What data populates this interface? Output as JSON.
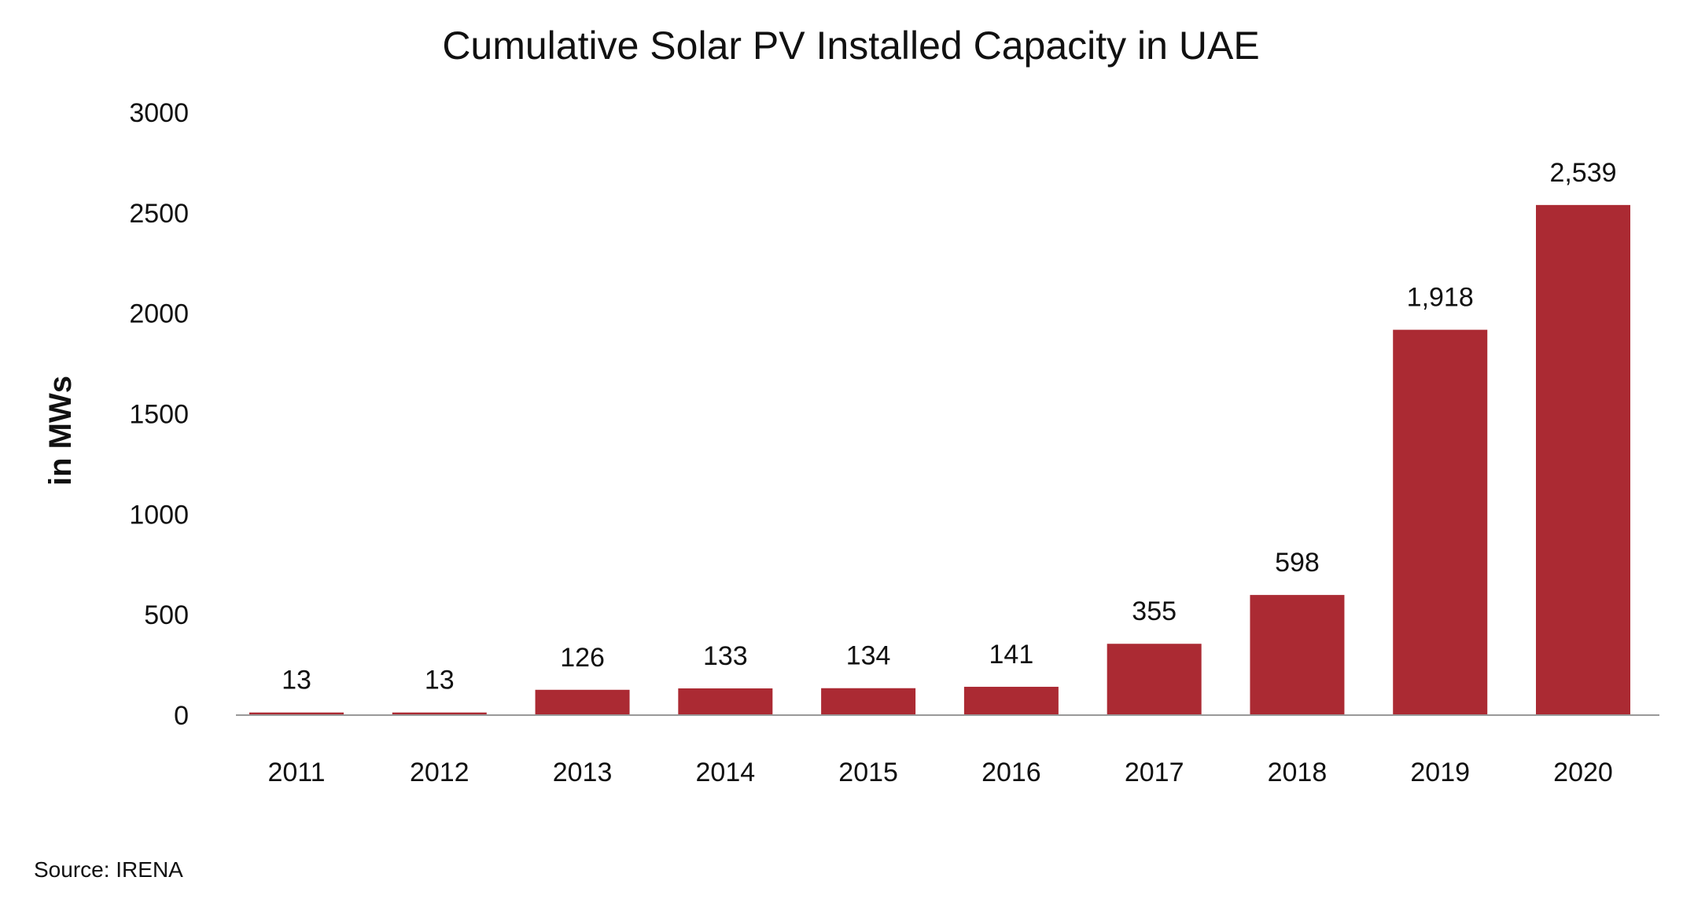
{
  "chart_data": {
    "type": "bar",
    "title": "Cumulative Solar PV Installed Capacity in UAE",
    "xlabel": "",
    "ylabel": "in MWs",
    "categories": [
      "2011",
      "2012",
      "2013",
      "2014",
      "2015",
      "2016",
      "2017",
      "2018",
      "2019",
      "2020"
    ],
    "values": [
      13,
      13,
      126,
      133,
      134,
      141,
      355,
      598,
      1918,
      2539
    ],
    "value_labels": [
      "13",
      "13",
      "126",
      "133",
      "134",
      "141",
      "355",
      "598",
      "1,918",
      "2,539"
    ],
    "y_ticks": [
      "0",
      "500",
      "1000",
      "1500",
      "2000",
      "2500",
      "3000"
    ],
    "ylim": [
      0,
      3000
    ],
    "grid": false,
    "legend": "none",
    "bar_color": "#ab2a33",
    "axis_color": "#999999",
    "source": "Source: IRENA"
  }
}
